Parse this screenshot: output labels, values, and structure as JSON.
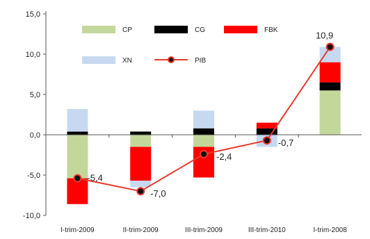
{
  "chart_data": {
    "type": "bar",
    "stacked": true,
    "categories": [
      "I-trim-2009",
      "II-trim-2009",
      "III-trim-2009",
      "III-trim-2010",
      "I-trim-2008"
    ],
    "series": [
      {
        "name": "CP",
        "color": "#c4d79b",
        "values": [
          -5.4,
          -1.5,
          -1.5,
          0.0,
          5.5
        ]
      },
      {
        "name": "CG",
        "color": "#000000",
        "values": [
          0.4,
          0.4,
          0.8,
          0.8,
          1.0
        ]
      },
      {
        "name": "FBK",
        "color": "#ff0000",
        "values": [
          -3.2,
          -4.2,
          -3.8,
          0.7,
          2.5
        ]
      },
      {
        "name": "XN",
        "color": "#c6d9f1",
        "values": [
          2.8,
          -0.8,
          2.2,
          -1.5,
          1.9
        ]
      }
    ],
    "line": {
      "name": "PIB",
      "color": "#e83a2e",
      "values": [
        -5.4,
        -7.0,
        -2.4,
        -0.7,
        10.9
      ]
    },
    "data_labels": [
      "-5,4",
      "-7,0",
      "-2,4",
      "-0,7",
      "10,9"
    ],
    "yticks": [
      "-10,0",
      "-5,0",
      "0,0",
      "5,0",
      "10,0",
      "15,0"
    ],
    "ylim": [
      -10,
      15
    ],
    "legend_placement": "top",
    "grid": false
  }
}
